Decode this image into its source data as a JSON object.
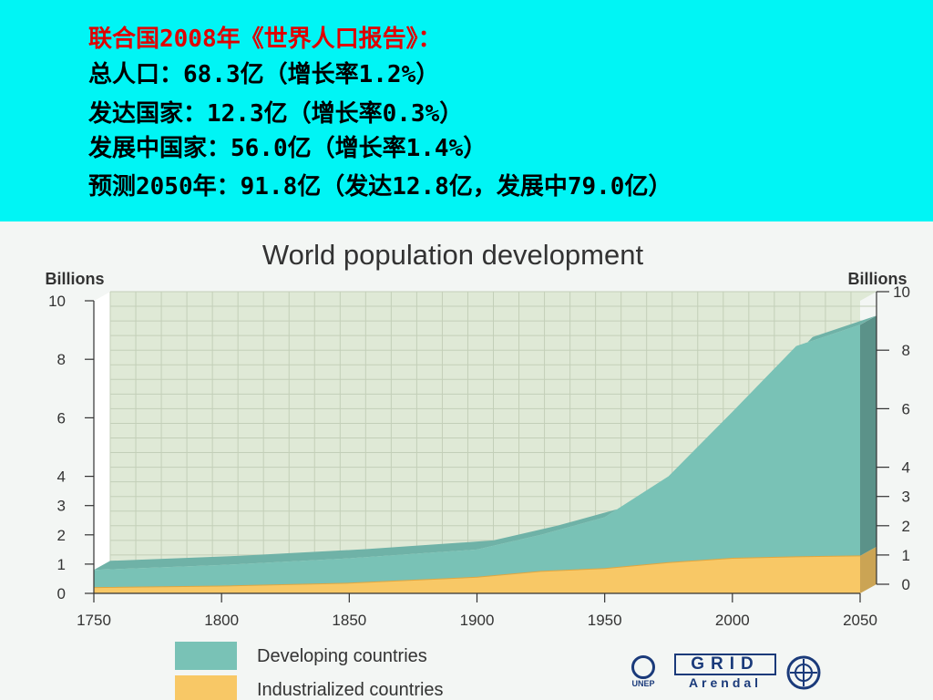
{
  "header": {
    "lines": [
      "联合国2008年《世界人口报告》：",
      "总人口：68.3亿（增长率1.2%）",
      "发达国家：12.3亿（增长率0.3%）",
      "发展中国家：56.0亿（增长率1.4%）",
      "预测2050年：91.8亿（发达12.8亿，发展中79.0亿）"
    ]
  },
  "colors": {
    "developing": "#79c2b6",
    "industrialized": "#f8c866",
    "background": "#00f5f5",
    "title_red": "#e00000"
  },
  "chart_data": {
    "type": "area",
    "title": "World population development",
    "ylabel_left": "Billions",
    "ylabel_right": "Billions",
    "xlim": [
      1750,
      2050
    ],
    "ylim": [
      0,
      10
    ],
    "xticks": [
      1750,
      1800,
      1850,
      1900,
      1950,
      2000,
      2050
    ],
    "yticks_left": [
      0,
      1,
      2,
      3,
      4,
      6,
      8,
      10
    ],
    "yticks_right": [
      0,
      1,
      2,
      3,
      4,
      6,
      8,
      10
    ],
    "stacked": true,
    "x": [
      1750,
      1800,
      1850,
      1900,
      1925,
      1950,
      1975,
      2000,
      2025,
      2050
    ],
    "series": [
      {
        "name": "Industrialized countries",
        "values": [
          0.2,
          0.25,
          0.35,
          0.55,
          0.75,
          0.85,
          1.05,
          1.2,
          1.25,
          1.28
        ]
      },
      {
        "name": "Developing countries",
        "values": [
          0.6,
          0.72,
          0.85,
          0.95,
          1.25,
          1.75,
          2.95,
          5.0,
          7.2,
          7.9
        ]
      }
    ],
    "legend": [
      "Developing countries",
      "Industrialized countries"
    ],
    "legend_position": "bottom-left",
    "grid": true
  },
  "logos": {
    "unep": "UNEP",
    "grid_top": "GRID",
    "grid_bottom": "Arendal"
  }
}
